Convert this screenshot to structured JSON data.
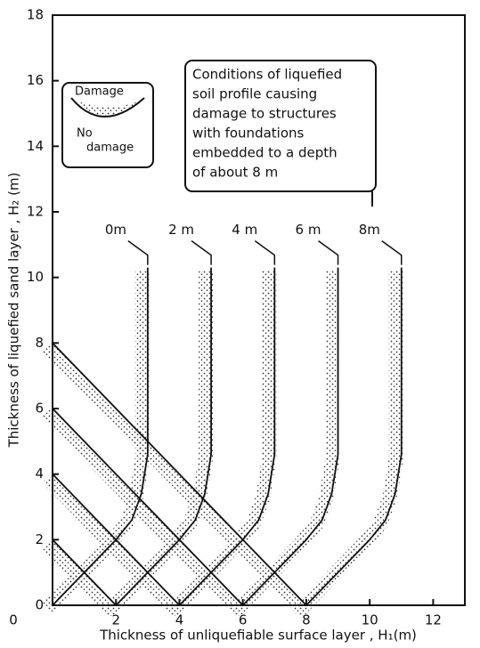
{
  "chart_data": {
    "type": "line",
    "xlabel": "Thickness of unliquefiable surface layer , H₁(m)",
    "ylabel": "Thickness of liquefied sand layer , H₂ (m)",
    "xlim": [
      0,
      13
    ],
    "ylim": [
      0,
      18
    ],
    "xticks": [
      0,
      2,
      4,
      6,
      8,
      10,
      12
    ],
    "yticks": [
      0,
      2,
      4,
      6,
      8,
      10,
      12,
      14,
      16,
      18
    ],
    "color": "#111",
    "series": [
      {
        "name": "0m",
        "x": [
          0,
          1,
          2,
          2.5,
          2.8,
          3,
          3
        ],
        "values": [
          0,
          1,
          2,
          2.6,
          3.4,
          4.6,
          10.3
        ]
      },
      {
        "name": "2 m",
        "x": [
          0,
          2,
          3,
          4,
          4.5,
          4.8,
          5,
          5
        ],
        "values": [
          2,
          0,
          1,
          2,
          2.6,
          3.4,
          4.6,
          10.3
        ]
      },
      {
        "name": "4 m",
        "x": [
          0,
          4,
          5,
          6,
          6.5,
          6.8,
          7,
          7
        ],
        "values": [
          4,
          0,
          1,
          2,
          2.6,
          3.4,
          4.6,
          10.3
        ]
      },
      {
        "name": "6 m",
        "x": [
          0,
          6,
          7,
          8,
          8.5,
          8.8,
          9,
          9
        ],
        "values": [
          6,
          0,
          1,
          2,
          2.6,
          3.4,
          4.6,
          10.3
        ]
      },
      {
        "name": "8m",
        "x": [
          0,
          8,
          9,
          10,
          10.5,
          10.8,
          11,
          11
        ],
        "values": [
          8,
          0,
          1,
          2,
          2.6,
          3.4,
          4.6,
          10.3
        ]
      }
    ],
    "annotation": [
      "Conditions of liquefied",
      "soil profile causing",
      "damage to structures",
      "with foundations",
      "embedded to a depth",
      "of about   8  m"
    ],
    "legend": {
      "upper": "Damage",
      "lower": [
        "No",
        "damage"
      ]
    }
  }
}
